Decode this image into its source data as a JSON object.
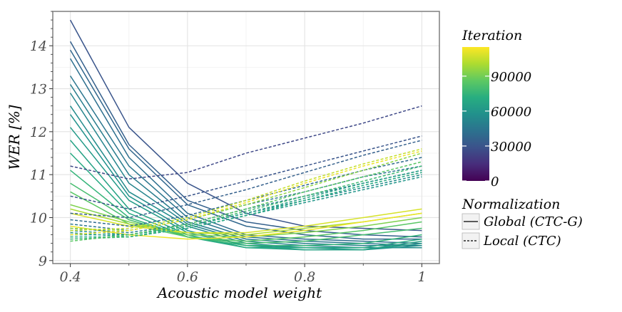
{
  "chart_data": {
    "type": "line",
    "xlabel": "Acoustic model weight",
    "ylabel": "WER [%]",
    "x": [
      0.4,
      0.5,
      0.6,
      0.7,
      0.8,
      0.9,
      1.0
    ],
    "xlim": [
      0.37,
      1.03
    ],
    "ylim": [
      8.93,
      14.8
    ],
    "x_ticks": [
      0.4,
      0.6,
      0.8,
      1.0
    ],
    "x_tick_labels": [
      "0.4",
      "0.6",
      "0.8",
      "1"
    ],
    "y_ticks": [
      9,
      10,
      11,
      12,
      13,
      14
    ],
    "y_tick_labels": [
      "9",
      "10",
      "11",
      "12",
      "13",
      "14"
    ],
    "grid": true,
    "colorbar": {
      "title": "Iteration",
      "ticks": [
        0,
        30000,
        60000,
        90000
      ],
      "tick_labels": [
        "0",
        "30000",
        "60000",
        "90000"
      ],
      "range": [
        0,
        115000
      ],
      "colormap": "viridis"
    },
    "linetype_legend": {
      "title": "Normalization",
      "entries": [
        {
          "label": "Global (CTC-G)",
          "dash": "solid"
        },
        {
          "label": "Local (CTC)",
          "dash": "dashed"
        }
      ]
    },
    "series": [
      {
        "iteration": 30000,
        "normalization": "Global (CTC-G)",
        "values": [
          14.6,
          12.1,
          10.8,
          10.1,
          9.8,
          9.75,
          9.7
        ]
      },
      {
        "iteration": 35000,
        "normalization": "Global (CTC-G)",
        "values": [
          14.1,
          11.7,
          10.4,
          9.9,
          9.7,
          9.6,
          9.55
        ]
      },
      {
        "iteration": 38000,
        "normalization": "Global (CTC-G)",
        "values": [
          13.9,
          11.6,
          10.3,
          9.8,
          9.6,
          9.5,
          9.5
        ]
      },
      {
        "iteration": 42000,
        "normalization": "Global (CTC-G)",
        "values": [
          13.7,
          11.4,
          10.1,
          9.6,
          9.5,
          9.45,
          9.4
        ]
      },
      {
        "iteration": 45000,
        "normalization": "Global (CTC-G)",
        "values": [
          13.3,
          11.2,
          10.0,
          9.55,
          9.45,
          9.4,
          9.35
        ]
      },
      {
        "iteration": 48000,
        "normalization": "Global (CTC-G)",
        "values": [
          13.1,
          11.0,
          9.9,
          9.5,
          9.4,
          9.35,
          9.35
        ]
      },
      {
        "iteration": 52000,
        "normalization": "Global (CTC-G)",
        "values": [
          12.9,
          10.8,
          9.85,
          9.45,
          9.35,
          9.3,
          9.3
        ]
      },
      {
        "iteration": 55000,
        "normalization": "Global (CTC-G)",
        "values": [
          12.6,
          10.6,
          9.8,
          9.4,
          9.3,
          9.3,
          9.3
        ]
      },
      {
        "iteration": 58000,
        "normalization": "Global (CTC-G)",
        "values": [
          12.4,
          10.5,
          9.7,
          9.35,
          9.3,
          9.25,
          9.35
        ]
      },
      {
        "iteration": 62000,
        "normalization": "Global (CTC-G)",
        "values": [
          12.1,
          10.4,
          9.65,
          9.35,
          9.25,
          9.25,
          9.4
        ]
      },
      {
        "iteration": 66000,
        "normalization": "Global (CTC-G)",
        "values": [
          11.8,
          10.2,
          9.6,
          9.3,
          9.25,
          9.25,
          9.45
        ]
      },
      {
        "iteration": 70000,
        "normalization": "Global (CTC-G)",
        "values": [
          11.5,
          10.1,
          9.55,
          9.3,
          9.3,
          9.3,
          9.5
        ]
      },
      {
        "iteration": 75000,
        "normalization": "Global (CTC-G)",
        "values": [
          11.1,
          10.0,
          9.55,
          9.35,
          9.35,
          9.4,
          9.6
        ]
      },
      {
        "iteration": 80000,
        "normalization": "Global (CTC-G)",
        "values": [
          10.8,
          9.95,
          9.55,
          9.4,
          9.45,
          9.6,
          9.75
        ]
      },
      {
        "iteration": 85000,
        "normalization": "Global (CTC-G)",
        "values": [
          10.6,
          9.85,
          9.55,
          9.45,
          9.55,
          9.7,
          9.9
        ]
      },
      {
        "iteration": 92000,
        "normalization": "Global (CTC-G)",
        "values": [
          10.3,
          9.9,
          9.6,
          9.55,
          9.65,
          9.8,
          10.0
        ]
      },
      {
        "iteration": 100000,
        "normalization": "Global (CTC-G)",
        "values": [
          10.2,
          9.85,
          9.65,
          9.6,
          9.75,
          9.9,
          10.1
        ]
      },
      {
        "iteration": 108000,
        "normalization": "Global (CTC-G)",
        "values": [
          10.1,
          9.8,
          9.65,
          9.65,
          9.8,
          10.0,
          10.2
        ]
      },
      {
        "iteration": 112000,
        "normalization": "Global (CTC-G)",
        "values": [
          9.8,
          9.6,
          9.5,
          9.55,
          9.7,
          9.9,
          10.1
        ]
      },
      {
        "iteration": 25000,
        "normalization": "Local (CTC)",
        "values": [
          11.2,
          10.9,
          11.05,
          11.5,
          11.85,
          12.2,
          12.6
        ]
      },
      {
        "iteration": 30000,
        "normalization": "Local (CTC)",
        "values": [
          10.5,
          10.2,
          10.5,
          10.85,
          11.2,
          11.55,
          11.9
        ]
      },
      {
        "iteration": 35000,
        "normalization": "Local (CTC)",
        "values": [
          10.1,
          10.0,
          10.3,
          10.65,
          11.05,
          11.45,
          11.8
        ]
      },
      {
        "iteration": 40000,
        "normalization": "Local (CTC)",
        "values": [
          9.95,
          9.8,
          10.05,
          10.4,
          10.75,
          11.1,
          11.4
        ]
      },
      {
        "iteration": 45000,
        "normalization": "Local (CTC)",
        "values": [
          9.85,
          9.7,
          9.95,
          10.3,
          10.6,
          10.95,
          11.2
        ]
      },
      {
        "iteration": 50000,
        "normalization": "Local (CTC)",
        "values": [
          9.75,
          9.65,
          9.85,
          10.2,
          10.5,
          10.8,
          11.1
        ]
      },
      {
        "iteration": 55000,
        "normalization": "Local (CTC)",
        "values": [
          9.7,
          9.6,
          9.8,
          10.1,
          10.4,
          10.7,
          11.0
        ]
      },
      {
        "iteration": 60000,
        "normalization": "Local (CTC)",
        "values": [
          9.65,
          9.55,
          9.75,
          10.05,
          10.35,
          10.65,
          10.95
        ]
      },
      {
        "iteration": 65000,
        "normalization": "Local (CTC)",
        "values": [
          9.6,
          9.6,
          9.8,
          10.1,
          10.45,
          10.8,
          11.1
        ]
      },
      {
        "iteration": 70000,
        "normalization": "Local (CTC)",
        "values": [
          9.55,
          9.55,
          9.75,
          10.05,
          10.4,
          10.75,
          11.05
        ]
      },
      {
        "iteration": 78000,
        "normalization": "Local (CTC)",
        "values": [
          9.5,
          9.55,
          9.8,
          10.15,
          10.5,
          10.85,
          11.2
        ]
      },
      {
        "iteration": 85000,
        "normalization": "Local (CTC)",
        "values": [
          9.45,
          9.6,
          9.85,
          10.2,
          10.6,
          10.95,
          11.3
        ]
      },
      {
        "iteration": 95000,
        "normalization": "Local (CTC)",
        "values": [
          9.75,
          9.7,
          9.95,
          10.3,
          10.7,
          11.1,
          11.5
        ]
      },
      {
        "iteration": 105000,
        "normalization": "Local (CTC)",
        "values": [
          9.7,
          9.75,
          10.0,
          10.4,
          10.85,
          11.25,
          11.6
        ]
      },
      {
        "iteration": 112000,
        "normalization": "Local (CTC)",
        "values": [
          9.6,
          9.7,
          9.95,
          10.35,
          10.8,
          11.2,
          11.55
        ]
      }
    ]
  }
}
